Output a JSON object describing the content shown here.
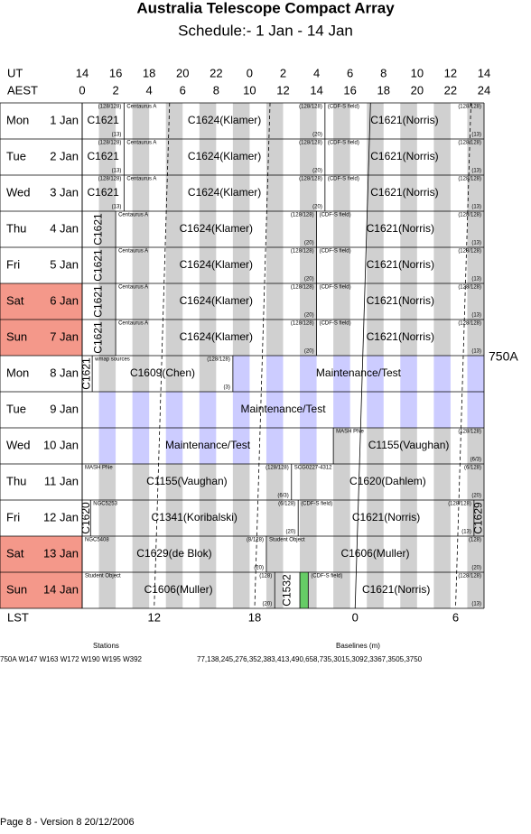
{
  "header": {
    "title": "Australia Telescope Compact Array",
    "subtitle": "Schedule:- 1  Jan - 14 Jan"
  },
  "time_axes": {
    "ut_label": "UT",
    "ut_ticks": [
      14,
      16,
      18,
      20,
      22,
      0,
      2,
      4,
      6,
      8,
      10,
      12,
      14
    ],
    "aest_label": "AEST",
    "aest_ticks": [
      0,
      2,
      4,
      6,
      8,
      10,
      12,
      14,
      16,
      18,
      20,
      22,
      24
    ]
  },
  "rows": [
    {
      "day": "Mon",
      "date": "1 Jan",
      "weekend": false,
      "blocks": [
        {
          "start": 0,
          "end": 2.5,
          "label": "C1621",
          "notes": {
            "tr": "(128/128)",
            "br": "(13)"
          }
        },
        {
          "start": 2.5,
          "end": 14.5,
          "label": "C1624(Klamer)",
          "notes": {
            "tl": "Centaurus A",
            "tr": "(128/128)",
            "br": "(20)"
          }
        },
        {
          "start": 14.5,
          "end": 24,
          "label": "C1621(Norris)",
          "notes": {
            "tl": "(CDF-S field)",
            "tr": "(128/128)",
            "br": "(13)"
          }
        }
      ]
    },
    {
      "day": "Tue",
      "date": "2 Jan",
      "weekend": false,
      "blocks": [
        {
          "start": 0,
          "end": 2.5,
          "label": "C1621",
          "notes": {
            "tr": "(128/128)",
            "br": "(13)"
          }
        },
        {
          "start": 2.5,
          "end": 14.5,
          "label": "C1624(Klamer)",
          "notes": {
            "tl": "Centaurus A",
            "tr": "(128/128)",
            "br": "(20)"
          }
        },
        {
          "start": 14.5,
          "end": 24,
          "label": "C1621(Norris)",
          "notes": {
            "tl": "(CDF-S field)",
            "tr": "(128/128)",
            "br": "(13)"
          }
        }
      ]
    },
    {
      "day": "Wed",
      "date": "3 Jan",
      "weekend": false,
      "blocks": [
        {
          "start": 0,
          "end": 2.5,
          "label": "C1621",
          "notes": {
            "tr": "(128/128)",
            "br": "(13)"
          }
        },
        {
          "start": 2.5,
          "end": 14.5,
          "label": "C1624(Klamer)",
          "notes": {
            "tl": "Centaurus A",
            "tr": "(128/128)",
            "br": "(20)"
          }
        },
        {
          "start": 14.5,
          "end": 24,
          "label": "C1621(Norris)",
          "notes": {
            "tl": "(CDF-S field)",
            "tr": "(128/128)",
            "br": "(13)"
          }
        }
      ]
    },
    {
      "day": "Thu",
      "date": "4 Jan",
      "weekend": false,
      "blocks": [
        {
          "start": 0,
          "end": 2,
          "label": "C1621",
          "vertical": true
        },
        {
          "start": 2,
          "end": 14,
          "label": "C1624(Klamer)",
          "notes": {
            "tl": "Centaurus A",
            "tr": "(128/128)",
            "br": "(20)"
          }
        },
        {
          "start": 14,
          "end": 24,
          "label": "C1621(Norris)",
          "notes": {
            "tl": "(CDF-S field)",
            "tr": "(128/128)",
            "br": "(13)"
          }
        }
      ]
    },
    {
      "day": "Fri",
      "date": "5 Jan",
      "weekend": false,
      "blocks": [
        {
          "start": 0,
          "end": 2,
          "label": "C1621",
          "vertical": true
        },
        {
          "start": 2,
          "end": 14,
          "label": "C1624(Klamer)",
          "notes": {
            "tl": "Centaurus A",
            "tr": "(128/128)",
            "br": "(20)"
          }
        },
        {
          "start": 14,
          "end": 24,
          "label": "C1621(Norris)",
          "notes": {
            "tl": "(CDF-S field)",
            "tr": "(128/128)",
            "br": "(13)"
          }
        }
      ]
    },
    {
      "day": "Sat",
      "date": "6 Jan",
      "weekend": true,
      "blocks": [
        {
          "start": 0,
          "end": 2,
          "label": "C1621",
          "vertical": true
        },
        {
          "start": 2,
          "end": 14,
          "label": "C1624(Klamer)",
          "notes": {
            "tl": "Centaurus A",
            "tr": "(128/128)",
            "br": "(20)"
          }
        },
        {
          "start": 14,
          "end": 24,
          "label": "C1621(Norris)",
          "notes": {
            "tl": "(CDF-S field)",
            "tr": "(128/128)",
            "br": "(13)"
          }
        }
      ]
    },
    {
      "day": "Sun",
      "date": "7 Jan",
      "weekend": true,
      "blocks": [
        {
          "start": 0,
          "end": 2,
          "label": "C1621",
          "vertical": true
        },
        {
          "start": 2,
          "end": 14,
          "label": "C1624(Klamer)",
          "notes": {
            "tl": "Centaurus A",
            "tr": "(128/128)",
            "br": "(20)"
          }
        },
        {
          "start": 14,
          "end": 24,
          "label": "C1621(Norris)",
          "notes": {
            "tl": "(CDF-S field)",
            "tr": "(128/128)",
            "br": "(13)"
          }
        }
      ]
    },
    {
      "day": "Mon",
      "date": "8 Jan",
      "weekend": false,
      "blocks": [
        {
          "start": 0,
          "end": 0.6,
          "label": "C1621",
          "vertical": true
        },
        {
          "start": 0.6,
          "end": 9,
          "label": "C1609(Chen)",
          "notes": {
            "tl": "wmap sources",
            "tr": "(128/128)",
            "br": "(3)"
          }
        },
        {
          "start": 9,
          "end": 24,
          "label": "Maintenance/Test",
          "maintenance": true
        }
      ]
    },
    {
      "day": "Tue",
      "date": "9 Jan",
      "weekend": false,
      "blocks": [
        {
          "start": 0,
          "end": 24,
          "label": "Maintenance/Test",
          "maintenance": true
        }
      ]
    },
    {
      "day": "Wed",
      "date": "10 Jan",
      "weekend": false,
      "blocks": [
        {
          "start": 0,
          "end": 15,
          "label": "Maintenance/Test",
          "maintenance": true
        },
        {
          "start": 15,
          "end": 24,
          "label": "C1155(Vaughan)",
          "notes": {
            "tl": "MASH PNe",
            "tr": "(128/128)",
            "br": "(6/3)"
          }
        }
      ]
    },
    {
      "day": "Thu",
      "date": "11 Jan",
      "weekend": false,
      "blocks": [
        {
          "start": 0,
          "end": 12.5,
          "label": "C1155(Vaughan)",
          "notes": {
            "tl": "MASH PNe",
            "tr": "(128/128)",
            "br": "(6/3)"
          }
        },
        {
          "start": 12.5,
          "end": 24,
          "label": "C1620(Dahlem)",
          "notes": {
            "tl": "SCG0227-4312",
            "tr": "(6/128)",
            "br": "(20)"
          }
        }
      ]
    },
    {
      "day": "Fri",
      "date": "12 Jan",
      "weekend": false,
      "blocks": [
        {
          "start": 0,
          "end": 0.5,
          "label": "C1620",
          "vertical": true
        },
        {
          "start": 0.5,
          "end": 12.9,
          "label": "C1341(Koribalski)",
          "notes": {
            "tl": "NGC5253",
            "tr": "(6/128)",
            "br": "(20)"
          }
        },
        {
          "start": 12.9,
          "end": 23.4,
          "label": "C1621(Norris)",
          "notes": {
            "tl": "(CDF-S field)",
            "tr": "(128/128)",
            "br": "(13)"
          }
        },
        {
          "start": 23.4,
          "end": 24,
          "label": "C1629",
          "vertical": true
        }
      ]
    },
    {
      "day": "Sat",
      "date": "13 Jan",
      "weekend": true,
      "blocks": [
        {
          "start": 0,
          "end": 11,
          "label": "C1629(de Blok)",
          "notes": {
            "tl": "NGC5408",
            "tr": "(8/128)",
            "br": "(20)"
          }
        },
        {
          "start": 11,
          "end": 24,
          "label": "C1606(Muller)",
          "notes": {
            "tl": "Student Object",
            "tr": "(128)",
            "br": "(20)"
          }
        }
      ]
    },
    {
      "day": "Sun",
      "date": "14 Jan",
      "weekend": true,
      "blocks": [
        {
          "start": 0,
          "end": 11.5,
          "label": "C1606(Muller)",
          "notes": {
            "tl": "Student Object",
            "tr": "(128)",
            "br": "(20)"
          }
        },
        {
          "start": 11.5,
          "end": 13,
          "label": "C1532",
          "vertical": true
        },
        {
          "start": 13,
          "end": 13.5,
          "color": "#66cc66"
        },
        {
          "start": 13.5,
          "end": 24,
          "label": "C1621(Norris)",
          "notes": {
            "tl": "(CDF-S field)",
            "tr": "(128/128)",
            "br": "(13)"
          }
        }
      ]
    }
  ],
  "array_config": "750A",
  "lst": {
    "label": "LST",
    "ticks": [
      12,
      18,
      0,
      6
    ]
  },
  "stations": {
    "title": "Stations",
    "text": "750A   W147 W163 W172 W190 W195 W392"
  },
  "baselines": {
    "title": "Baselines (m)",
    "text": "77,138,245,276,352,383,413,490,658,735,3015,3092,3367,3505,3750"
  },
  "footer": "Page 8 - Version 8  20/12/2006"
}
